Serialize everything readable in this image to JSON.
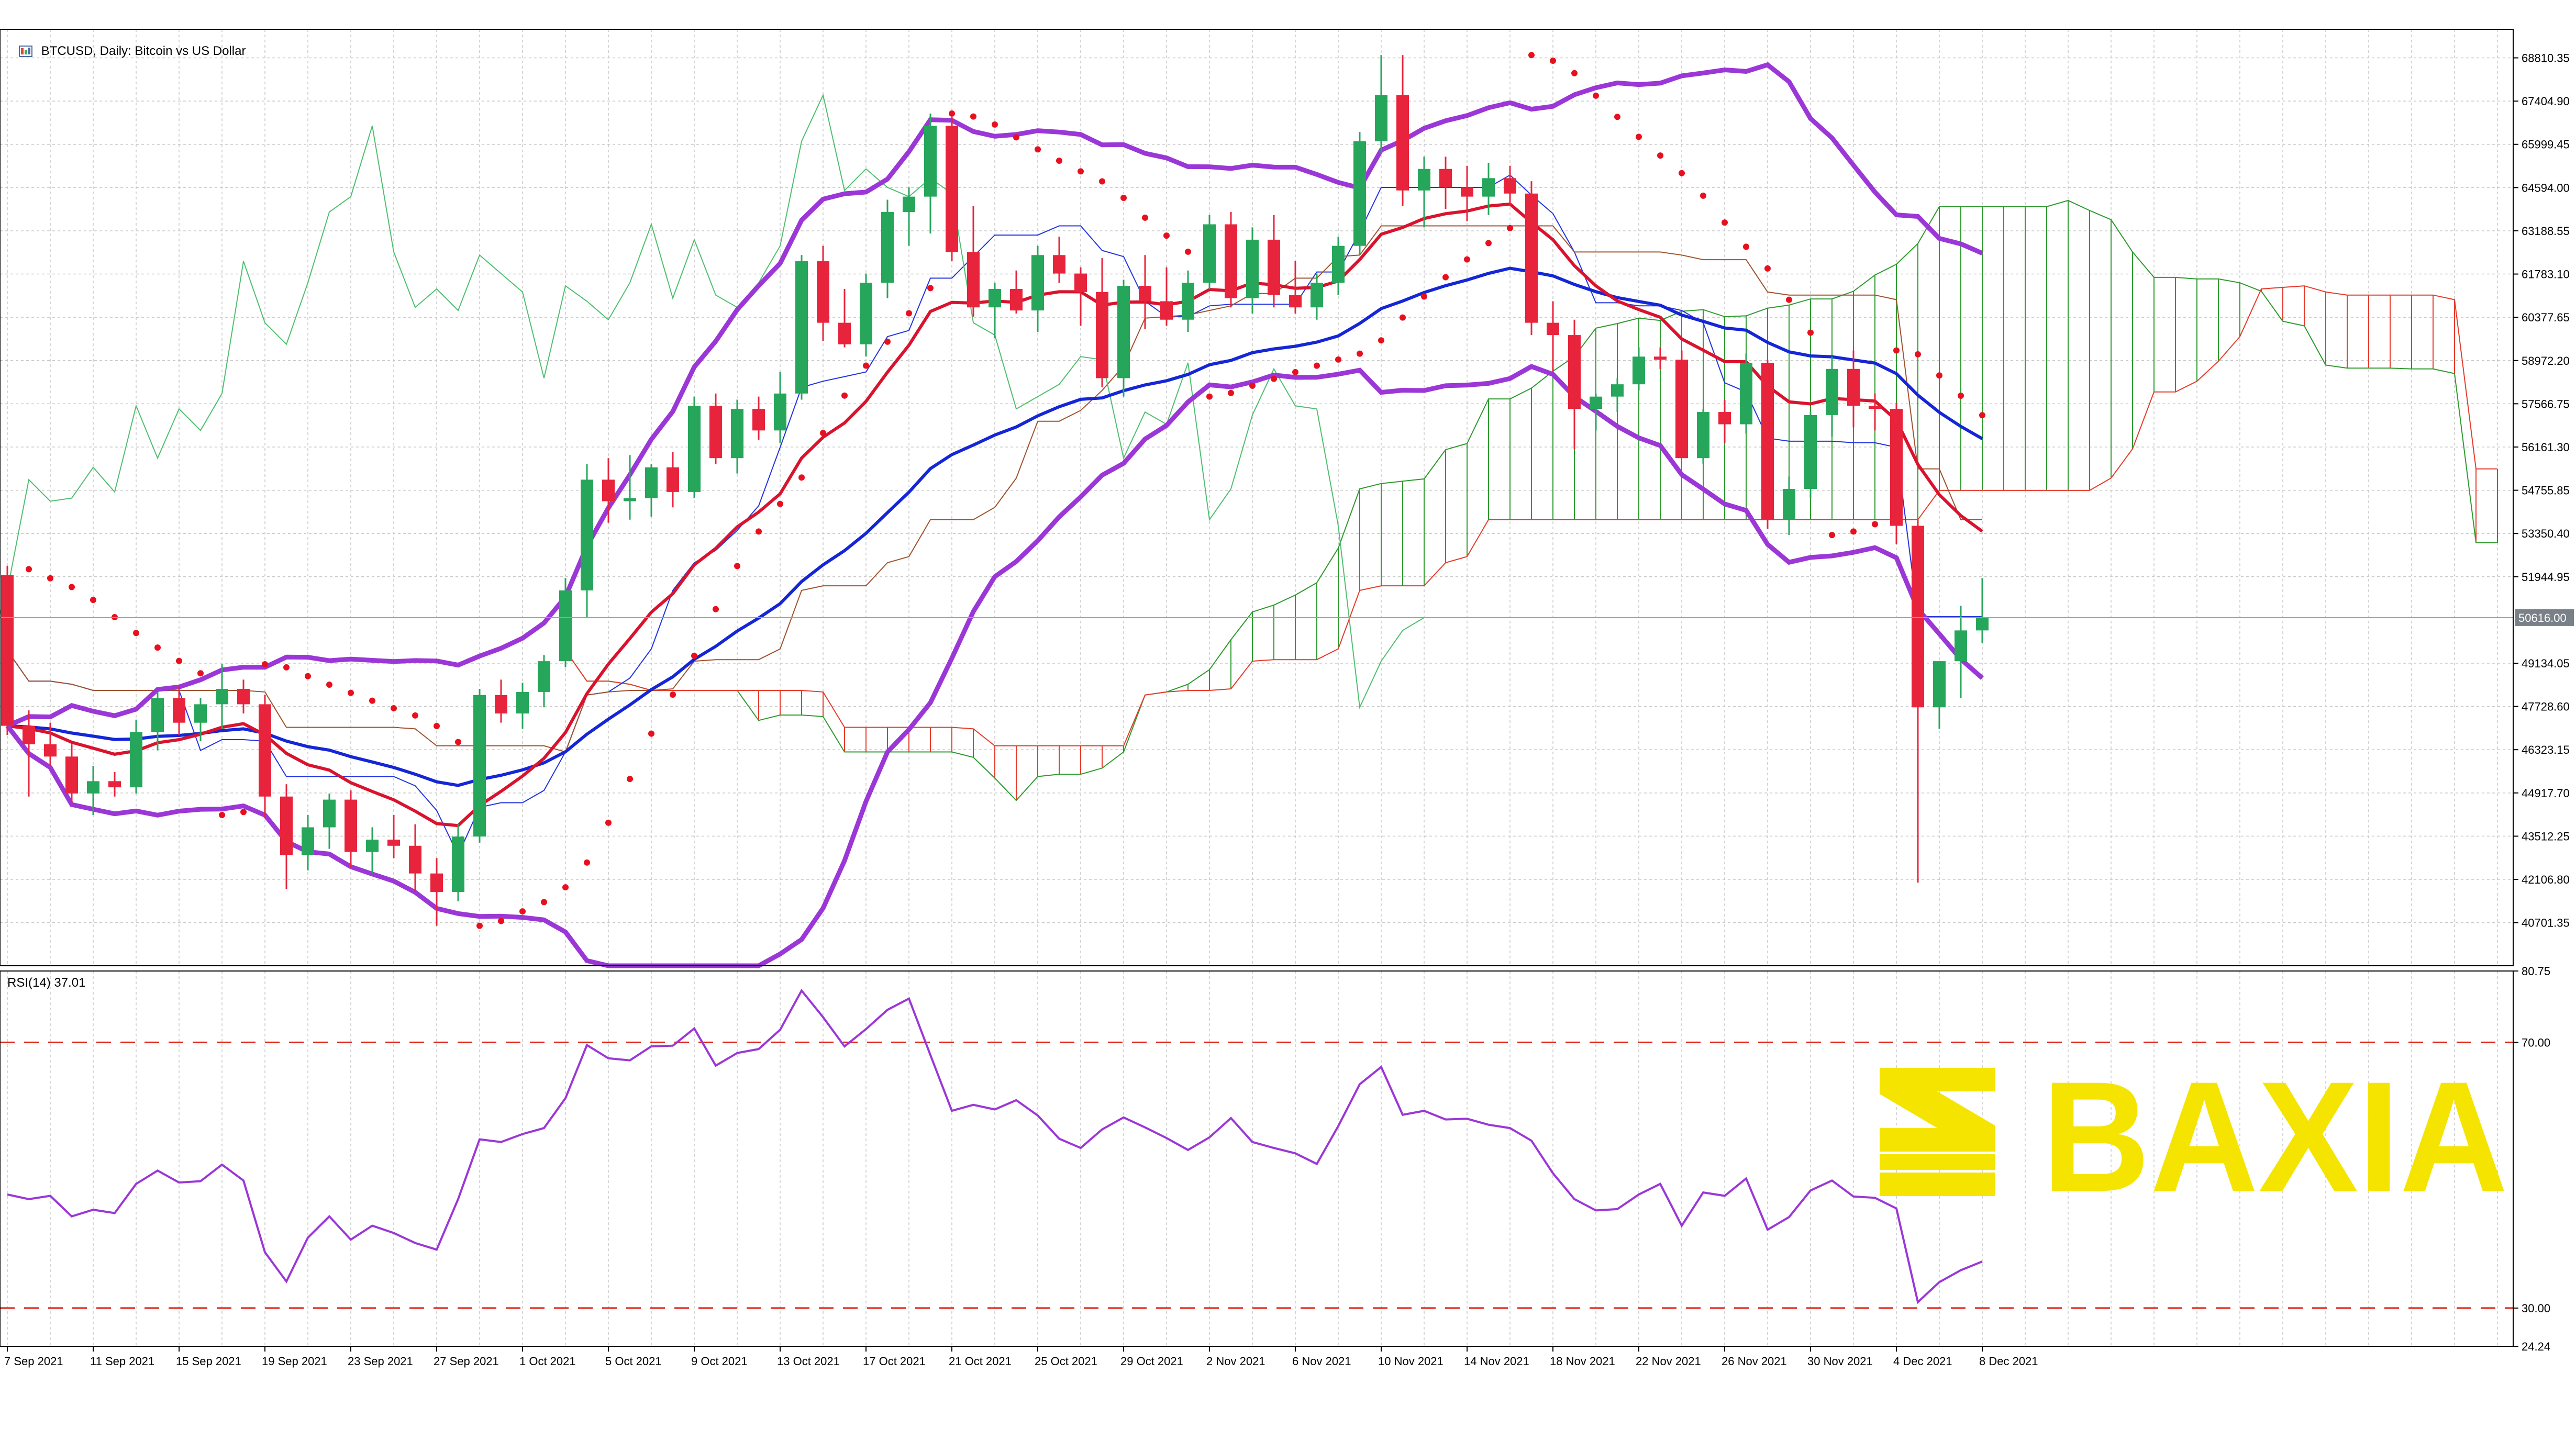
{
  "header": {
    "symbol": "BTCUSD, Daily:",
    "description": "Bitcoin vs US Dollar"
  },
  "rsi_panel": {
    "label": "RSI(14) 37.01"
  },
  "watermark": {
    "text": "BAXIA",
    "color": "#f5e400"
  },
  "colors": {
    "bull_candle": "#26a65b",
    "bear_candle": "#e8243c",
    "bollinger": "#9b37d6",
    "ma_fast": "#d9132e",
    "ma_slow": "#1426d6",
    "ichimoku_bull": "#2e9a2e",
    "ichimoku_bear": "#e53b2a",
    "rsi_line": "#9b37d6",
    "rsi_levels": "#e0241a",
    "current_price_line": "#9aa0a6"
  },
  "chart_data": [
    {
      "type": "candlestick",
      "title": "BTCUSD, Daily: Bitcoin vs US Dollar",
      "ylim": [
        39300,
        69500
      ],
      "y_ticks": [
        68810.35,
        67404.9,
        65999.45,
        64594.0,
        63188.55,
        61783.1,
        60377.65,
        58972.2,
        57566.75,
        56161.3,
        54755.85,
        53350.4,
        51944.95,
        49134.05,
        47728.6,
        46323.15,
        44917.7,
        43512.25,
        42106.8,
        40701.35
      ],
      "y_tick_labels": [
        "68810.35",
        "67404.90",
        "65999.45",
        "64594.00",
        "63188.55",
        "61783.10",
        "60377.65",
        "58972.20",
        "57566.75",
        "56161.30",
        "54755.85",
        "53350.40",
        "51944.95",
        "49134.05",
        "47728.60",
        "46323.15",
        "44917.70",
        "43512.25",
        "42106.80",
        "40701.35"
      ],
      "current_price": 50616.0,
      "current_price_label": "50616.00",
      "x_labels": [
        "7 Sep 2021",
        "11 Sep 2021",
        "15 Sep 2021",
        "19 Sep 2021",
        "23 Sep 2021",
        "27 Sep 2021",
        "1 Oct 2021",
        "5 Oct 2021",
        "9 Oct 2021",
        "13 Oct 2021",
        "17 Oct 2021",
        "21 Oct 2021",
        "25 Oct 2021",
        "29 Oct 2021",
        "2 Nov 2021",
        "6 Nov 2021",
        "10 Nov 2021",
        "14 Nov 2021",
        "18 Nov 2021",
        "22 Nov 2021",
        "26 Nov 2021",
        "30 Nov 2021",
        "4 Dec 2021",
        "8 Dec 2021"
      ],
      "x_label_days": [
        0,
        4,
        8,
        12,
        16,
        20,
        24,
        28,
        32,
        36,
        40,
        44,
        48,
        52,
        56,
        60,
        64,
        68,
        72,
        76,
        80,
        84,
        88,
        92
      ],
      "candles": [
        [
          52000,
          52300,
          46800,
          47100
        ],
        [
          47100,
          47600,
          44800,
          46500
        ],
        [
          46500,
          47200,
          45800,
          46100
        ],
        [
          46100,
          46500,
          44600,
          44900
        ],
        [
          44900,
          45800,
          44200,
          45300
        ],
        [
          45300,
          45600,
          44800,
          45100
        ],
        [
          45100,
          47300,
          44900,
          46900
        ],
        [
          46900,
          48200,
          46300,
          48000
        ],
        [
          48000,
          48400,
          46800,
          47200
        ],
        [
          47200,
          48000,
          46600,
          47800
        ],
        [
          47800,
          49100,
          47000,
          48300
        ],
        [
          48300,
          48600,
          47500,
          47800
        ],
        [
          47800,
          48100,
          44100,
          44800
        ],
        [
          44800,
          45200,
          41800,
          42900
        ],
        [
          42900,
          44200,
          42400,
          43800
        ],
        [
          43800,
          44900,
          43100,
          44700
        ],
        [
          44700,
          45000,
          42500,
          43000
        ],
        [
          43000,
          43800,
          42300,
          43400
        ],
        [
          43400,
          44200,
          42800,
          43200
        ],
        [
          43200,
          43900,
          41700,
          42300
        ],
        [
          42300,
          42800,
          40600,
          41700
        ],
        [
          41700,
          43900,
          41400,
          43500
        ],
        [
          43500,
          48300,
          43300,
          48100
        ],
        [
          48100,
          48600,
          47200,
          47500
        ],
        [
          47500,
          48500,
          47000,
          48200
        ],
        [
          48200,
          49400,
          47700,
          49200
        ],
        [
          49200,
          51900,
          49000,
          51500
        ],
        [
          51500,
          55600,
          50600,
          55100
        ],
        [
          55100,
          55800,
          53700,
          54400
        ],
        [
          54400,
          55900,
          53800,
          54500
        ],
        [
          54500,
          55600,
          53900,
          55500
        ],
        [
          55500,
          56000,
          54200,
          54700
        ],
        [
          54700,
          57800,
          54500,
          57500
        ],
        [
          57500,
          57900,
          55600,
          55800
        ],
        [
          55800,
          57700,
          55300,
          57400
        ],
        [
          57400,
          57800,
          56400,
          56700
        ],
        [
          56700,
          58600,
          56300,
          57900
        ],
        [
          57900,
          62400,
          57700,
          62200
        ],
        [
          62200,
          62700,
          59600,
          60200
        ],
        [
          60200,
          61300,
          59400,
          59500
        ],
        [
          59500,
          61800,
          59100,
          61500
        ],
        [
          61500,
          64200,
          61000,
          63800
        ],
        [
          63800,
          64600,
          62700,
          64300
        ],
        [
          64300,
          67000,
          63100,
          66600
        ],
        [
          66600,
          66900,
          62200,
          62500
        ],
        [
          62500,
          64000,
          60400,
          60700
        ],
        [
          60700,
          61500,
          59700,
          61300
        ],
        [
          61300,
          61900,
          60500,
          60600
        ],
        [
          60600,
          62700,
          59900,
          62400
        ],
        [
          62400,
          63000,
          61500,
          61800
        ],
        [
          61800,
          62000,
          60100,
          61200
        ],
        [
          61200,
          62300,
          58100,
          58400
        ],
        [
          58400,
          61600,
          57800,
          61400
        ],
        [
          61400,
          62400,
          60000,
          60900
        ],
        [
          60900,
          62000,
          60100,
          60300
        ],
        [
          60300,
          61900,
          59900,
          61500
        ],
        [
          61500,
          63700,
          61300,
          63400
        ],
        [
          63400,
          63800,
          60700,
          61000
        ],
        [
          61000,
          63300,
          60500,
          62900
        ],
        [
          62900,
          63700,
          60700,
          61100
        ],
        [
          61100,
          62200,
          60500,
          60700
        ],
        [
          60700,
          61800,
          60300,
          61500
        ],
        [
          61500,
          63000,
          61100,
          62700
        ],
        [
          62700,
          66400,
          62400,
          66100
        ],
        [
          66100,
          68900,
          65700,
          67600
        ],
        [
          67600,
          68900,
          64000,
          64500
        ],
        [
          64500,
          65600,
          63300,
          65200
        ],
        [
          65200,
          65600,
          63900,
          64600
        ],
        [
          64600,
          65300,
          63500,
          64300
        ],
        [
          64300,
          65400,
          63700,
          64900
        ],
        [
          64900,
          65300,
          64000,
          64400
        ],
        [
          64400,
          64800,
          59800,
          60200
        ],
        [
          60200,
          60900,
          58600,
          59800
        ],
        [
          59800,
          60300,
          56100,
          57400
        ],
        [
          57400,
          57900,
          56700,
          57800
        ],
        [
          57800,
          58400,
          57300,
          58200
        ],
        [
          58200,
          59400,
          58000,
          59100
        ],
        [
          59100,
          59400,
          58700,
          59000
        ],
        [
          59000,
          59300,
          55900,
          55800
        ],
        [
          55800,
          57400,
          55600,
          57300
        ],
        [
          57300,
          57700,
          56300,
          56900
        ],
        [
          56900,
          59200,
          56600,
          58900
        ],
        [
          58900,
          59000,
          53500,
          53800
        ],
        [
          53800,
          55200,
          53300,
          54800
        ],
        [
          54800,
          57300,
          54500,
          57200
        ],
        [
          57200,
          59100,
          56500,
          58700
        ],
        [
          58700,
          59300,
          56800,
          57500
        ],
        [
          57500,
          57900,
          56700,
          57400
        ],
        [
          57400,
          57600,
          53000,
          53600
        ],
        [
          53600,
          53800,
          42000,
          47700
        ],
        [
          47700,
          49200,
          47000,
          49200
        ],
        [
          49200,
          51000,
          48000,
          50200
        ],
        [
          50200,
          51900,
          49800,
          50616
        ]
      ]
    },
    {
      "type": "line",
      "title": "RSI(14) 37.01",
      "ylim": [
        24.24,
        80.75
      ],
      "y_ticks": [
        80.75,
        70.0,
        30.0,
        24.24
      ],
      "y_tick_labels": [
        "80.75",
        "70.00",
        "30.00",
        "24.24"
      ],
      "levels": [
        70,
        30
      ],
      "x_labels": [
        "7 Sep 2021",
        "11 Sep 2021",
        "15 Sep 2021",
        "19 Sep 2021",
        "23 Sep 2021",
        "27 Sep 2021",
        "1 Oct 2021",
        "5 Oct 2021",
        "9 Oct 2021",
        "13 Oct 2021",
        "17 Oct 2021",
        "21 Oct 2021",
        "25 Oct 2021",
        "29 Oct 2021",
        "2 Nov 2021",
        "6 Nov 2021",
        "10 Nov 2021",
        "14 Nov 2021",
        "18 Nov 2021",
        "22 Nov 2021",
        "26 Nov 2021",
        "30 Nov 2021",
        "4 Dec 2021",
        "8 Dec 2021"
      ],
      "series": [
        {
          "values": [
            47.1,
            46.4,
            46.9,
            43.8,
            44.8,
            44.3,
            48.7,
            50.7,
            48.9,
            49.1,
            51.6,
            49.2,
            38.4,
            34.0,
            40.6,
            43.8,
            40.3,
            42.4,
            41.3,
            39.8,
            38.8,
            46.4,
            55.4,
            55.0,
            56.2,
            57.1,
            61.6,
            69.6,
            67.6,
            67.3,
            69.4,
            69.5,
            72.1,
            66.5,
            68.4,
            69.0,
            71.9,
            77.8,
            73.8,
            69.4,
            72.0,
            74.9,
            76.6,
            68.1,
            59.7,
            60.6,
            59.9,
            61.3,
            59.0,
            55.5,
            54.1,
            56.9,
            58.7,
            57.2,
            55.6,
            53.8,
            55.7,
            58.6,
            55.0,
            54.1,
            53.3,
            51.7,
            57.4,
            63.7,
            66.3,
            59.1,
            59.7,
            58.4,
            58.5,
            57.6,
            57.1,
            55.2,
            50.3,
            46.4,
            44.7,
            44.9,
            47.1,
            48.7,
            42.4,
            47.4,
            46.9,
            49.5,
            41.8,
            43.7,
            47.7,
            49.2,
            46.8,
            46.6,
            45.0,
            30.9,
            33.9,
            35.7,
            37.01
          ]
        }
      ]
    }
  ]
}
